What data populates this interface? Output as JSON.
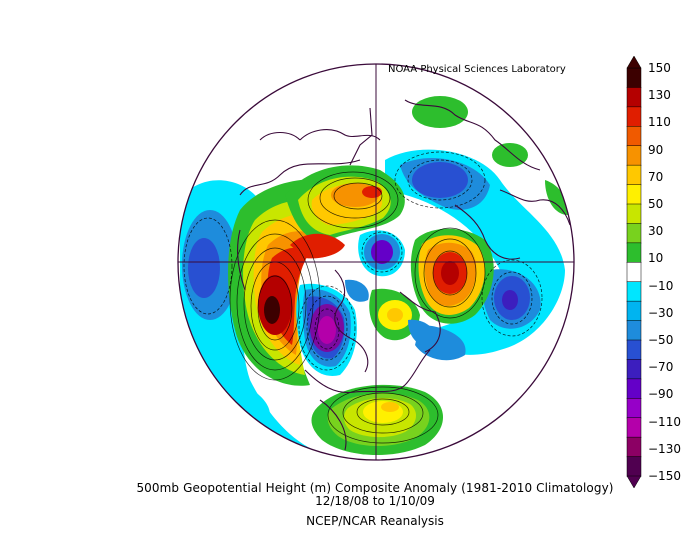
{
  "header": {
    "credit": "NOAA Physical Sciences Laboratory"
  },
  "footer": {
    "title": "500mb Geopotential Height (m) Composite Anomaly (1981-2010 Climatology)",
    "dates": "12/18/08  to 1/10/09",
    "source": "NCEP/NCAR Reanalysis"
  },
  "colorbar": {
    "labels": [
      "150",
      "130",
      "110",
      "90",
      "70",
      "50",
      "30",
      "10",
      "-10",
      "-30",
      "-50",
      "-70",
      "-90",
      "-110",
      "-130",
      "-150"
    ],
    "colors": [
      "#3c0000",
      "#b40000",
      "#e01e00",
      "#f05a00",
      "#f79200",
      "#ffc800",
      "#fff000",
      "#c8e600",
      "#78d21e",
      "#2dbe2d",
      "#ffffff",
      "#00e6ff",
      "#00b4f0",
      "#1e8cdc",
      "#2850d2",
      "#3c1ebe",
      "#6400c8",
      "#9600c8",
      "#b400aa",
      "#8c0064",
      "#500050"
    ]
  },
  "map": {
    "projection": "north-polar-stereographic",
    "anomaly_centers": [
      {
        "name": "north-pacific-positive",
        "value": "+",
        "color": "#c80000"
      },
      {
        "name": "western-canada-negative",
        "value": "-",
        "color": "#7a0aa0"
      },
      {
        "name": "arctic-russia-positive",
        "value": "+",
        "color": "#f5b400"
      },
      {
        "name": "northern-europe-positive",
        "value": "+",
        "color": "#c80000"
      },
      {
        "name": "siberia-negative",
        "value": "-",
        "color": "#2850d2"
      },
      {
        "name": "atlantic-positive",
        "value": "+",
        "color": "#f0e000"
      }
    ]
  }
}
